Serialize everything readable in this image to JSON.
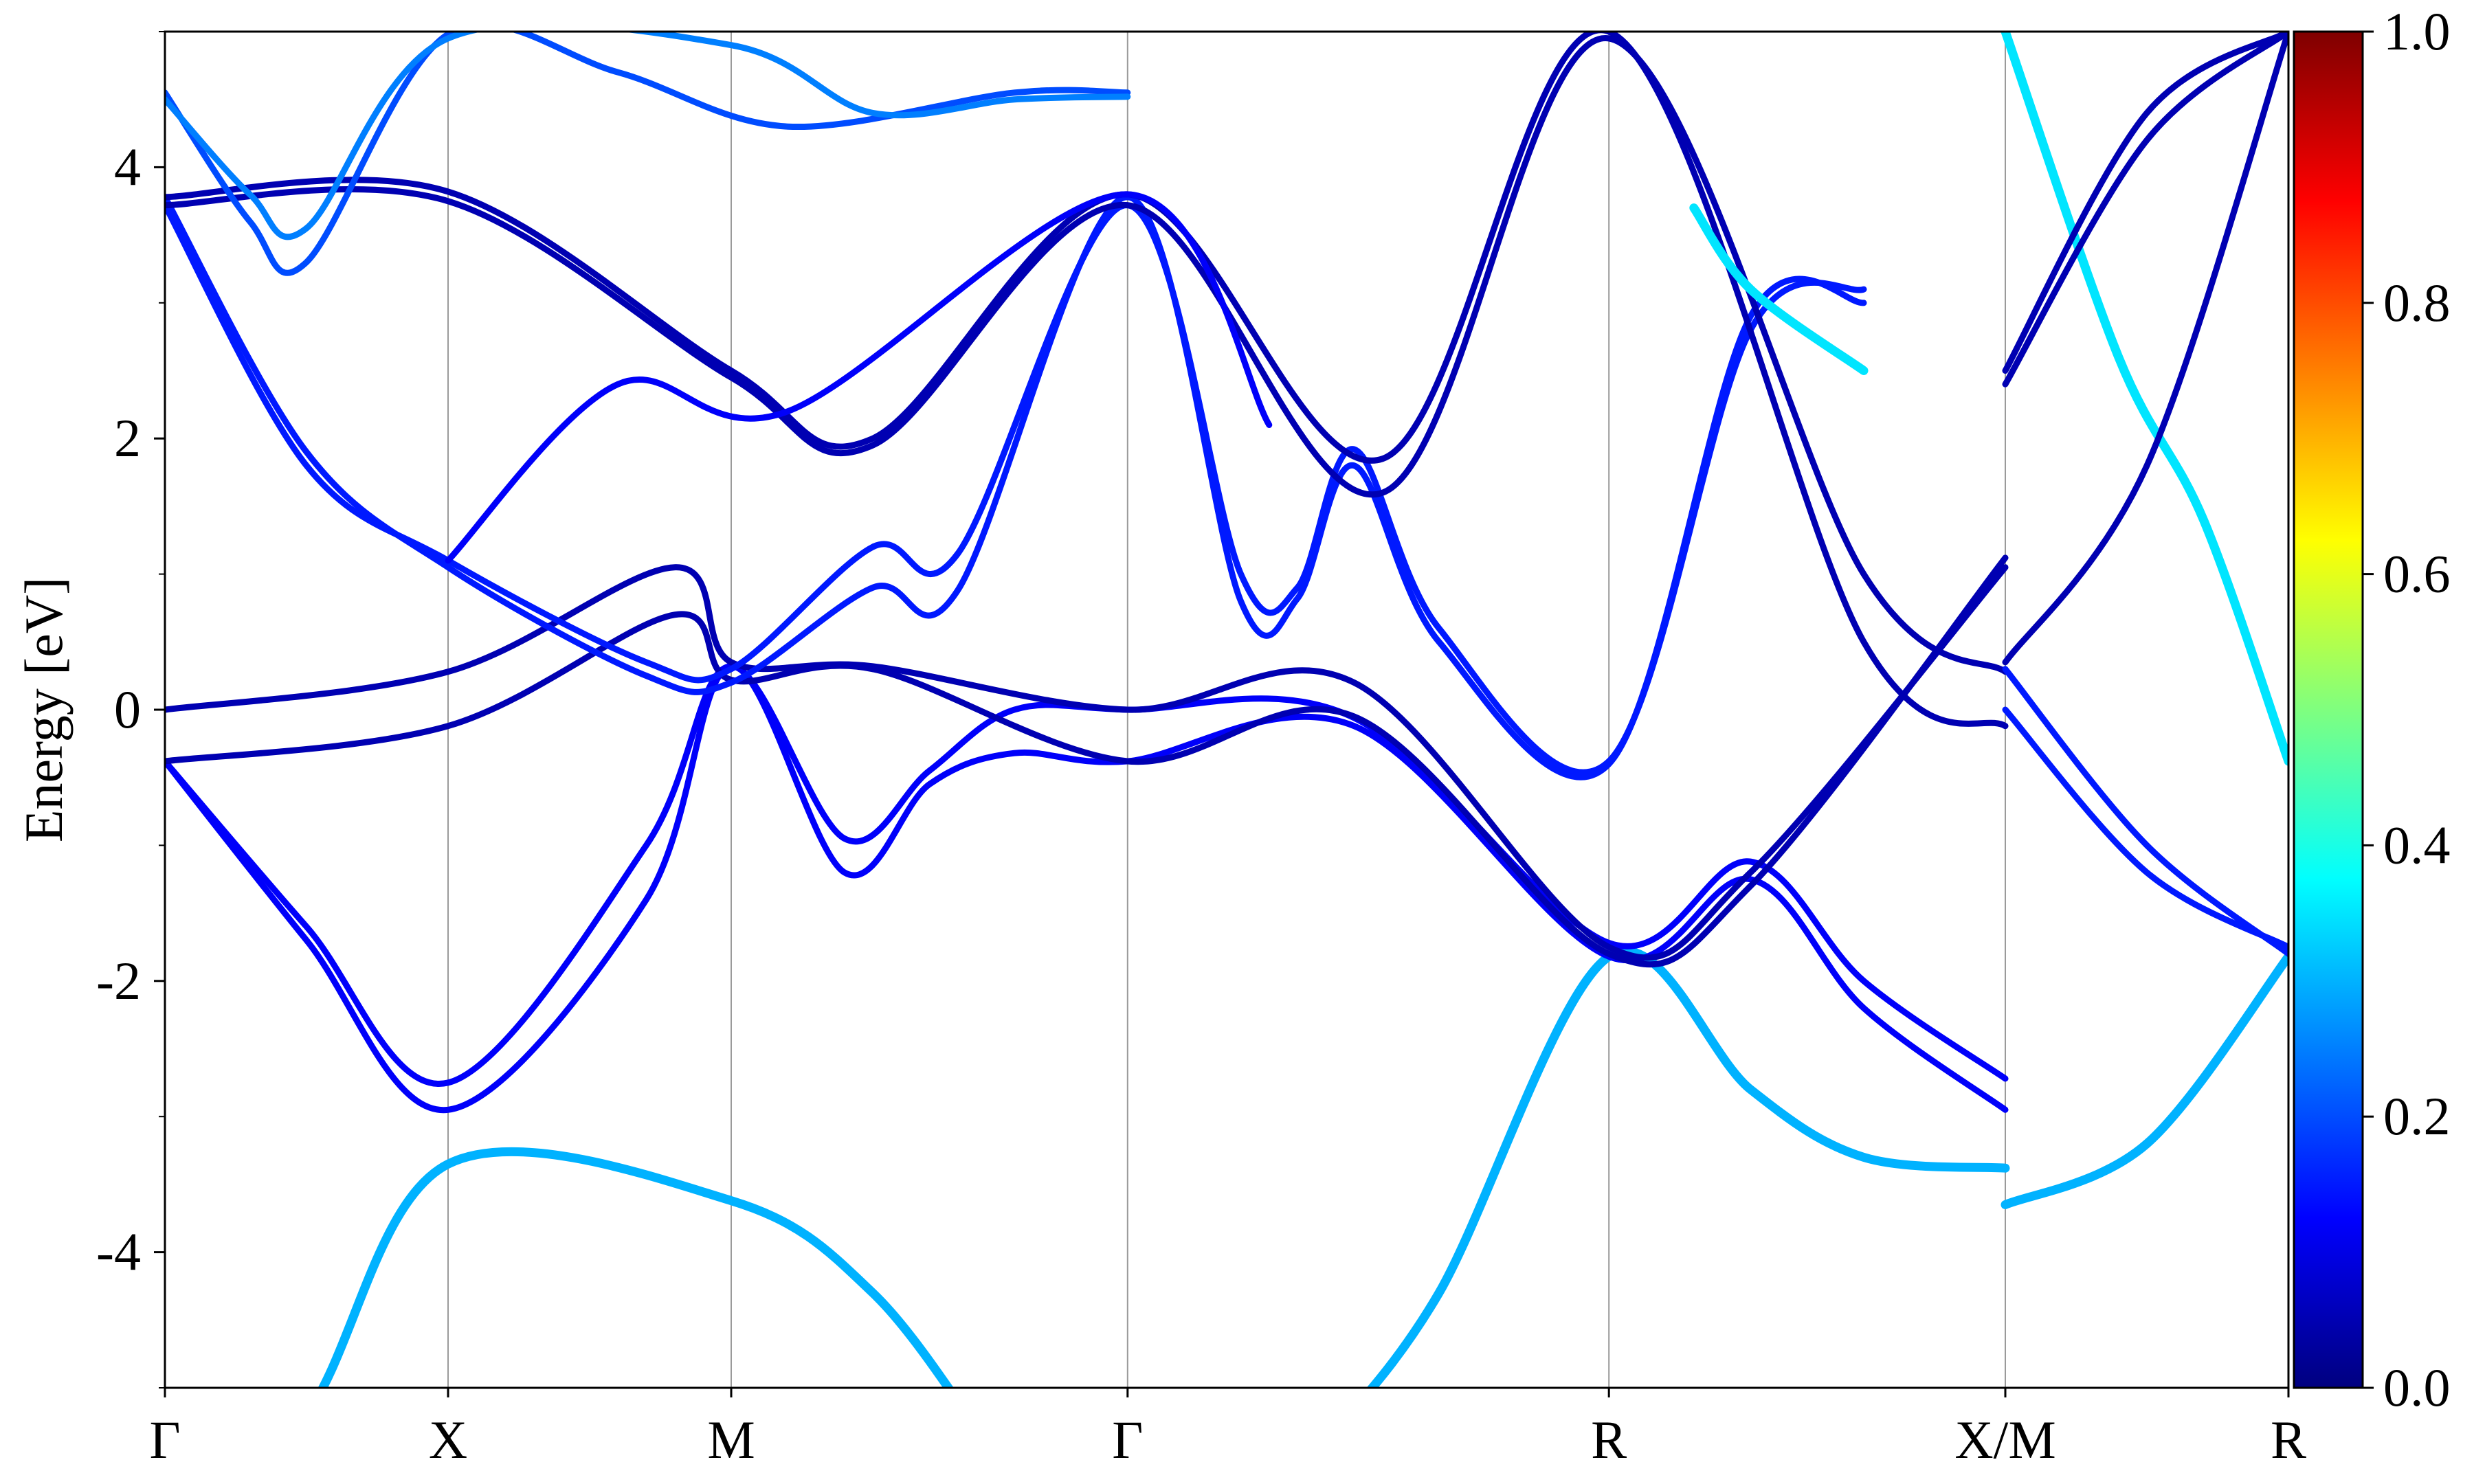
{
  "chart_data": {
    "type": "line",
    "ylabel": "Energy [eV]",
    "ylim": [
      -5,
      5
    ],
    "y_ticks": [
      -4,
      -2,
      0,
      2,
      4
    ],
    "y_tick_labels": [
      "-4",
      "-2",
      "0",
      "2",
      "4"
    ],
    "x_ticks": [
      0,
      1,
      2,
      3.4,
      5.1,
      6.5,
      7.5
    ],
    "x_tick_labels": [
      "Γ",
      "X",
      "M",
      "Γ",
      "R",
      "X/M",
      "R"
    ],
    "xlim": [
      0,
      7.5
    ],
    "grid": "vertical lines at high-symmetry points",
    "colorbar": {
      "range": [
        0,
        1
      ],
      "tick_values": [
        0,
        0.2,
        0.4,
        0.6,
        0.8,
        1.0
      ],
      "tick_labels": [
        "0.0",
        "0.2",
        "0.4",
        "0.6",
        "0.8",
        "1.0"
      ],
      "colormap": "jet",
      "jet_stops": [
        "#00007f",
        "#0000ff",
        "#007fff",
        "#00ffff",
        "#7fff7f",
        "#ffff00",
        "#ff7f00",
        "#ff0000",
        "#7f0000"
      ]
    },
    "bands": [
      {
        "w": [
          [
            0,
            0.3
          ],
          [
            1,
            0.3
          ],
          [
            2,
            0.3
          ],
          [
            2.6,
            0.3
          ],
          [
            3.4,
            0.3
          ],
          [
            4.6,
            0.35
          ],
          [
            5.1,
            0.35
          ],
          [
            6.5,
            0.32
          ]
        ],
        "y": [
          [
            0,
            -6.2
          ],
          [
            0.5,
            -5.2
          ],
          [
            1,
            -3.35
          ],
          [
            2,
            -3.62
          ],
          [
            2.5,
            -4.3
          ],
          [
            2.9,
            -5.4
          ]
        ]
      },
      {
        "w": 0.3,
        "y": [
          [
            4.1,
            -5.4
          ],
          [
            4.5,
            -4.3
          ],
          [
            5.1,
            -1.82
          ],
          [
            5.6,
            -2.8
          ],
          [
            6.0,
            -3.3
          ],
          [
            6.5,
            -3.38
          ]
        ]
      },
      {
        "w": 0.3,
        "y": [
          [
            6.5,
            -3.65
          ],
          [
            7.0,
            -3.2
          ],
          [
            7.5,
            -1.82
          ]
        ]
      },
      {
        "w": 0.12,
        "y": [
          [
            0,
            -0.38
          ],
          [
            0.5,
            -1.6
          ],
          [
            1,
            -2.75
          ],
          [
            1.7,
            -1.0
          ],
          [
            2,
            0.32
          ],
          [
            2.4,
            -0.95
          ],
          [
            2.7,
            -0.45
          ],
          [
            3.0,
            0.0
          ],
          [
            3.4,
            0.0
          ],
          [
            4.2,
            -0.06
          ],
          [
            5.1,
            -1.72
          ],
          [
            5.6,
            -1.12
          ],
          [
            6.0,
            -2.0
          ],
          [
            6.5,
            -2.72
          ]
        ]
      },
      {
        "w": 0.12,
        "y": [
          [
            0,
            -0.38
          ],
          [
            0.5,
            -1.7
          ],
          [
            1,
            -2.95
          ],
          [
            1.7,
            -1.4
          ],
          [
            2,
            0.32
          ],
          [
            2.4,
            -1.2
          ],
          [
            2.7,
            -0.55
          ],
          [
            3.0,
            -0.32
          ],
          [
            3.4,
            -0.38
          ],
          [
            4.2,
            -0.12
          ],
          [
            5.1,
            -1.82
          ],
          [
            5.6,
            -1.25
          ],
          [
            6.0,
            -2.2
          ],
          [
            6.5,
            -2.95
          ]
        ]
      },
      {
        "w": 0.05,
        "y": [
          [
            0,
            0.0
          ],
          [
            1,
            0.28
          ],
          [
            1.8,
            1.05
          ],
          [
            2,
            0.35
          ],
          [
            2.5,
            0.32
          ],
          [
            3.4,
            0.0
          ],
          [
            4.2,
            0.2
          ],
          [
            5.1,
            -1.75
          ],
          [
            5.6,
            -1.2
          ],
          [
            6.5,
            1.05
          ]
        ]
      },
      {
        "w": 0.05,
        "y": [
          [
            0,
            -0.38
          ],
          [
            1,
            -0.12
          ],
          [
            1.8,
            0.7
          ],
          [
            2,
            0.22
          ],
          [
            2.5,
            0.3
          ],
          [
            3.4,
            -0.38
          ],
          [
            4.2,
            -0.05
          ],
          [
            5.1,
            -1.8
          ],
          [
            5.6,
            -1.3
          ],
          [
            6.5,
            1.12
          ]
        ]
      },
      {
        "w": 0.15,
        "y": [
          [
            0,
            3.72
          ],
          [
            0.5,
            1.8
          ],
          [
            1,
            1.1
          ],
          [
            1.7,
            0.35
          ],
          [
            2,
            0.3
          ],
          [
            2.5,
            1.2
          ],
          [
            2.8,
            1.15
          ],
          [
            3.4,
            3.72
          ],
          [
            3.8,
            1.0
          ],
          [
            4.0,
            0.9
          ],
          [
            4.2,
            1.92
          ],
          [
            4.5,
            0.6
          ],
          [
            5.1,
            -0.38
          ],
          [
            5.6,
            2.8
          ],
          [
            6.0,
            3.1
          ]
        ]
      },
      {
        "w": 0.15,
        "y": [
          [
            0,
            3.78
          ],
          [
            0.5,
            1.9
          ],
          [
            1,
            1.05
          ],
          [
            1.7,
            0.25
          ],
          [
            2,
            0.2
          ],
          [
            2.5,
            0.9
          ],
          [
            2.8,
            0.88
          ],
          [
            3.4,
            3.78
          ],
          [
            3.8,
            0.8
          ],
          [
            4.0,
            0.82
          ],
          [
            4.2,
            1.8
          ],
          [
            4.5,
            0.5
          ],
          [
            5.1,
            -0.4
          ],
          [
            5.6,
            2.9
          ],
          [
            6.0,
            3.0
          ]
        ]
      },
      {
        "w": 0.05,
        "y": [
          [
            0,
            3.72
          ],
          [
            1,
            3.75
          ],
          [
            2,
            2.45
          ],
          [
            2.5,
            1.95
          ],
          [
            3.4,
            3.72
          ],
          [
            4.3,
            1.6
          ],
          [
            5.1,
            4.95
          ],
          [
            6.0,
            1.0
          ],
          [
            6.5,
            0.28
          ]
        ]
      },
      {
        "w": 0.05,
        "y": [
          [
            0,
            3.78
          ],
          [
            1,
            3.82
          ],
          [
            2,
            2.5
          ],
          [
            2.5,
            2.0
          ],
          [
            3.4,
            3.8
          ],
          [
            4.3,
            1.85
          ],
          [
            5.1,
            5.0
          ],
          [
            6.0,
            0.5
          ],
          [
            6.5,
            -0.12
          ]
        ]
      },
      {
        "w": 0.12,
        "y": [
          [
            1,
            1.1
          ],
          [
            1.6,
            2.4
          ],
          [
            2.2,
            2.2
          ],
          [
            3.4,
            3.8
          ],
          [
            3.9,
            2.1
          ]
        ]
      },
      {
        "w": 0.2,
        "y": [
          [
            0,
            4.55
          ],
          [
            0.3,
            3.6
          ],
          [
            0.5,
            3.3
          ],
          [
            1,
            4.98
          ],
          [
            1.6,
            4.7
          ],
          [
            2.2,
            4.3
          ],
          [
            3.0,
            4.55
          ],
          [
            3.4,
            4.55
          ]
        ]
      },
      {
        "w": 0.25,
        "y": [
          [
            0,
            4.5
          ],
          [
            0.3,
            3.8
          ],
          [
            0.5,
            3.55
          ],
          [
            1,
            4.95
          ],
          [
            2,
            4.9
          ],
          [
            2.5,
            4.4
          ],
          [
            3.0,
            4.5
          ],
          [
            3.4,
            4.52
          ]
        ]
      },
      {
        "w": 0.35,
        "y": [
          [
            6.5,
            5.0
          ],
          [
            6.9,
            2.6
          ],
          [
            7.2,
            1.4
          ],
          [
            7.5,
            -0.38
          ]
        ]
      },
      {
        "w": 0.35,
        "y": [
          [
            5.4,
            3.7
          ],
          [
            5.6,
            3.1
          ],
          [
            6.0,
            2.5
          ]
        ]
      },
      {
        "w": 0.05,
        "y": [
          [
            6.5,
            0.35
          ],
          [
            7.0,
            1.8
          ],
          [
            7.5,
            5.0
          ]
        ]
      },
      {
        "w": 0.05,
        "y": [
          [
            6.5,
            2.4
          ],
          [
            7.0,
            4.2
          ],
          [
            7.5,
            5.0
          ]
        ]
      },
      {
        "w": 0.05,
        "y": [
          [
            6.5,
            2.5
          ],
          [
            7.0,
            4.4
          ],
          [
            7.5,
            5.0
          ]
        ]
      },
      {
        "w": 0.15,
        "y": [
          [
            6.5,
            0.0
          ],
          [
            7.0,
            -1.2
          ],
          [
            7.5,
            -1.75
          ]
        ]
      },
      {
        "w": 0.15,
        "y": [
          [
            6.5,
            0.3
          ],
          [
            7.0,
            -1.0
          ],
          [
            7.5,
            -1.8
          ]
        ]
      }
    ]
  }
}
